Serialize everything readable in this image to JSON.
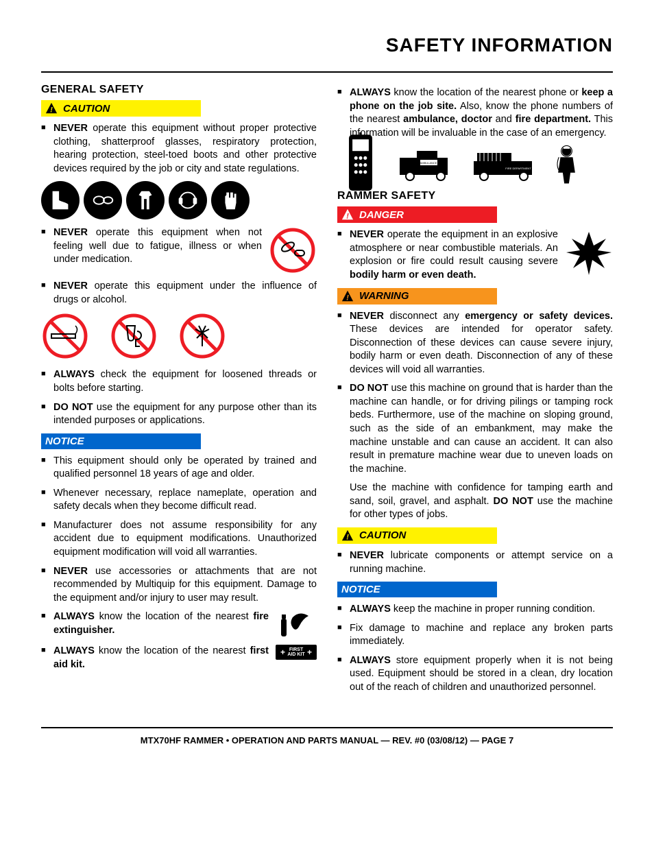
{
  "page_title": "SAFETY INFORMATION",
  "footer": "MTX70HF RAMMER • OPERATION AND PARTS MANUAL — REV. #0 (03/08/12) — PAGE 7",
  "alerts": {
    "caution": "CAUTION",
    "danger": "DANGER",
    "warning": "WARNING",
    "notice": "NOTICE"
  },
  "left": {
    "heading1": "GENERAL SAFETY",
    "caution_items": [
      "<b>NEVER</b> operate this equipment without proper protective clothing, shatterproof glasses, respiratory protection, hearing protection, steel-toed boots and other protective devices required by the job or city and state regulations."
    ],
    "fatigue_item": "<b>NEVER</b> operate this equipment when not feeling well due to fatigue, illness or when under medication.",
    "drugs_item": "<b>NEVER</b> operate this equipment under the influence of drugs or alcohol.",
    "after_prohib": [
      "<b>ALWAYS</b> check the equipment for loosened threads or bolts before starting.",
      "<b>DO NOT</b> use the equipment for any purpose other than its intended purposes or applications."
    ],
    "notice_items": [
      "This equipment should only be operated by trained and qualified personnel 18 years of age and older.",
      "Whenever necessary, replace nameplate, operation and safety decals when they become difficult read.",
      "Manufacturer does not assume responsibility for any accident due to equipment modifications. Unauthorized equipment modification will void all warranties.",
      "<b>NEVER</b> use accessories or attachments that are not recommended by Multiquip for this equipment. Damage to the equipment and/or injury to user may result."
    ],
    "fire_ext": "<b>ALWAYS</b> know the location of the nearest <b>fire extinguisher.</b>",
    "first_aid": "<b>ALWAYS</b> know the location of the nearest <b>first aid kit.</b>",
    "first_aid_label": "FIRST AID KIT"
  },
  "right": {
    "phone_item": "<b>ALWAYS</b> know the location of the nearest phone or <b>keep a phone on the job site.</b> Also, know the phone numbers of the nearest <b>ambulance, doctor</b> and <b>fire department.</b> This information will be invaluable in the case of an emergency.",
    "heading1": "RAMMER SAFETY",
    "danger_item": "<b>NEVER</b> operate the equipment in an explosive atmosphere or near combustible materials. An explosion or fire could result causing severe <b>bodily harm or even death.</b>",
    "warning_items": [
      "<b>NEVER</b> disconnect any <b>emergency or safety devices.</b> These devices are intended for operator safety. Disconnection of these devices can cause severe injury, bodily harm or even death. Disconnection of any of these devices will void all warranties.",
      "<b>DO NOT</b> use this machine on ground that is harder than the machine can handle, or for driving pilings or tamping rock beds. Furthermore, use of the machine on sloping ground, such as the side of an embankment, may make the machine unstable and can cause an accident. It can also result in premature machine wear due to uneven loads on the machine."
    ],
    "warning_followup": "Use the machine with confidence for tamping earth and sand, soil, gravel, and asphalt. <b>DO NOT</b> use the machine for other types of jobs.",
    "caution_items": [
      "<b>NEVER</b> lubricate components or attempt service on a running machine."
    ],
    "notice_items": [
      "<b>ALWAYS</b> keep the machine in proper running condition.",
      "Fix damage to machine and replace any broken parts immediately.",
      "<b>ALWAYS</b> store equipment properly when it is not being used. Equipment should be stored in a clean, dry location out of the reach of children and unauthorized personnel."
    ]
  },
  "colors": {
    "caution_bg": "#fff200",
    "danger_bg": "#ed1c24",
    "warning_bg": "#f7941d",
    "notice_bg": "#0066cc"
  }
}
